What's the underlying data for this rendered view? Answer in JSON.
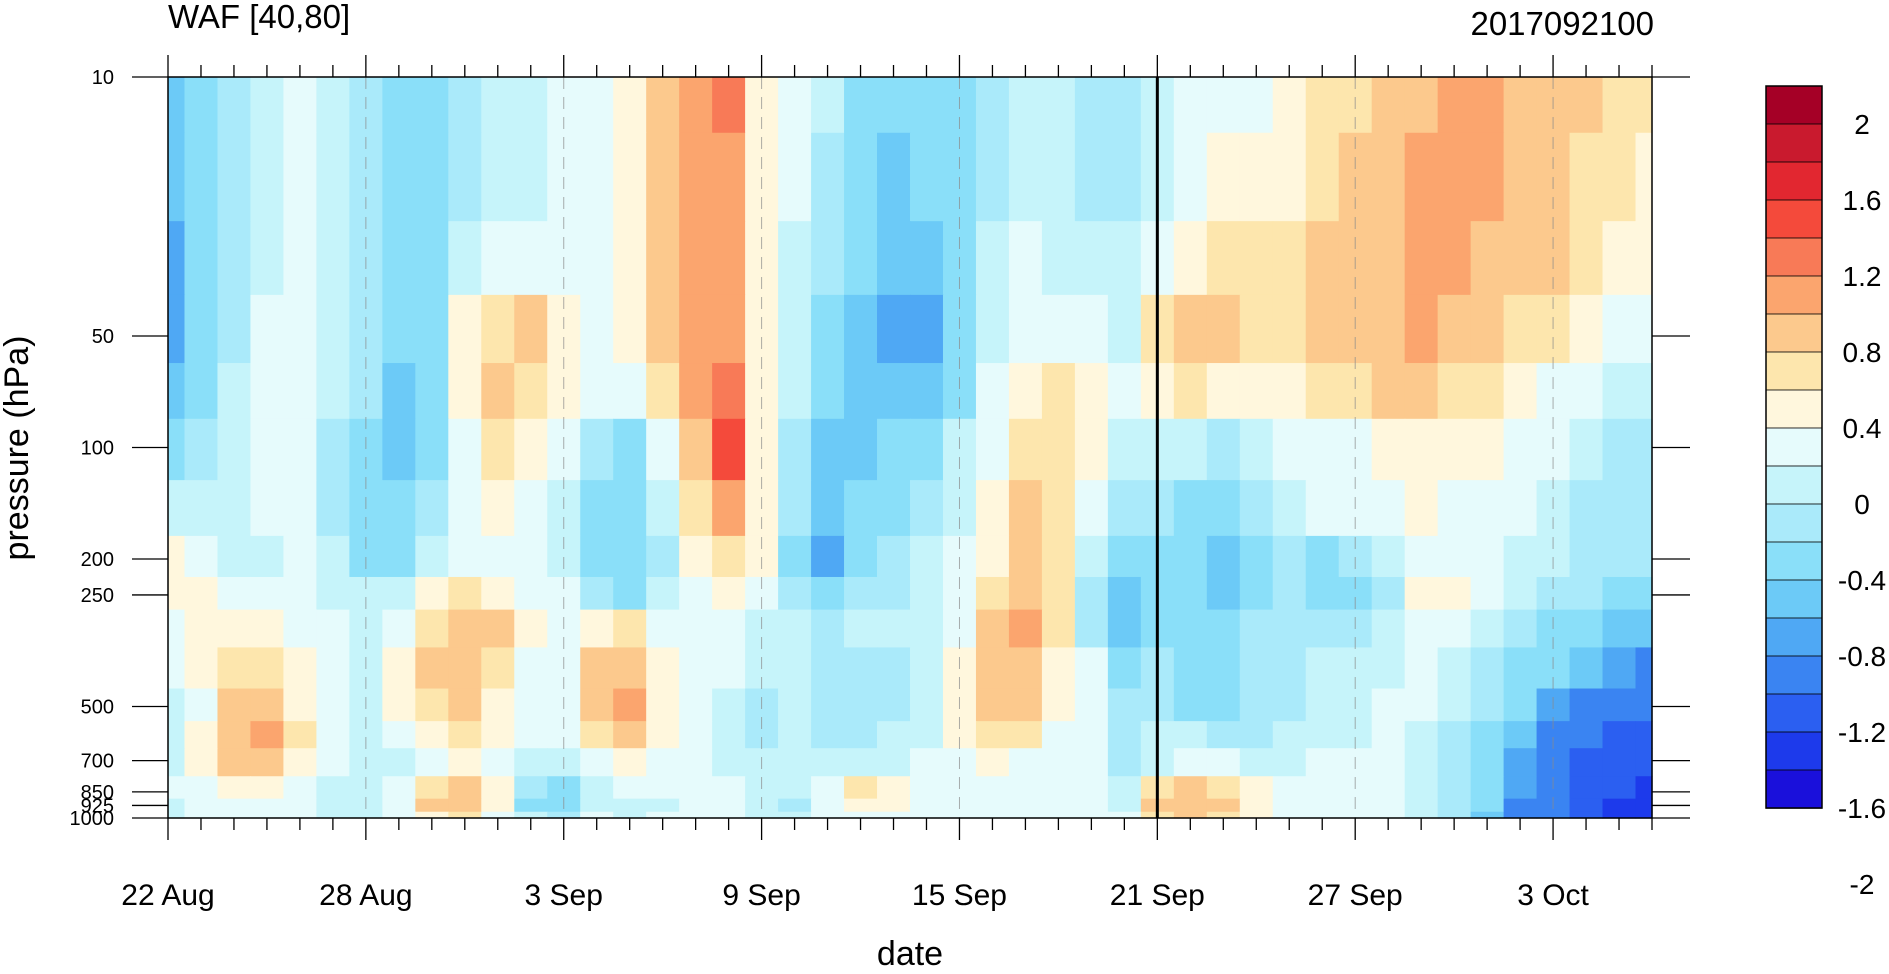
{
  "chart_data": {
    "type": "heatmap",
    "title": "WAF [40,80]",
    "subtitle": "2017092100",
    "xlabel": "date",
    "ylabel": "pressure (hPa)",
    "x_ticks": [
      "22 Aug",
      "28 Aug",
      "3 Sep",
      "9 Sep",
      "15 Sep",
      "21 Sep",
      "27 Sep",
      "3 Oct"
    ],
    "y_ticks": [
      "10",
      "50",
      "100",
      "200",
      "250",
      "500",
      "700",
      "850",
      "925",
      "1000"
    ],
    "y_scale": "log",
    "ylim": [
      1000,
      10
    ],
    "marker_date": "21 Sep",
    "colorbar": {
      "labels": [
        "2",
        "1.6",
        "1.2",
        "0.8",
        "0.4",
        "0",
        "-0.4",
        "-0.8",
        "-1.2",
        "-1.6",
        "-2"
      ],
      "colors": [
        "#a50026",
        "#c91a2e",
        "#e22730",
        "#f44a3b",
        "#f87a57",
        "#fba56e",
        "#fcc98d",
        "#fde6ad",
        "#fff7dd",
        "#e6fbfc",
        "#c6f4fa",
        "#aaeafa",
        "#8adff9",
        "#6ccaf7",
        "#4fa8f4",
        "#3a84f2",
        "#2b5ff1",
        "#1d3aeb",
        "#1a10db"
      ]
    },
    "levels": [
      10,
      20,
      30,
      50,
      70,
      100,
      150,
      200,
      250,
      300,
      400,
      500,
      600,
      700,
      850,
      925,
      1000
    ],
    "dates": [
      "22 Aug",
      "23 Aug",
      "24 Aug",
      "25 Aug",
      "26 Aug",
      "27 Aug",
      "28 Aug",
      "29 Aug",
      "30 Aug",
      "31 Aug",
      "1 Sep",
      "2 Sep",
      "3 Sep",
      "4 Sep",
      "5 Sep",
      "6 Sep",
      "7 Sep",
      "8 Sep",
      "9 Sep",
      "10 Sep",
      "11 Sep",
      "12 Sep",
      "13 Sep",
      "14 Sep",
      "15 Sep",
      "16 Sep",
      "17 Sep",
      "18 Sep",
      "19 Sep",
      "20 Sep",
      "21 Sep",
      "22 Sep",
      "23 Sep",
      "24 Sep",
      "25 Sep",
      "26 Sep",
      "27 Sep",
      "28 Sep",
      "29 Sep",
      "30 Sep",
      "1 Oct",
      "2 Oct",
      "3 Oct",
      "4 Oct",
      "5 Oct",
      "6 Oct"
    ],
    "z": [
      [
        -0.9,
        -0.6,
        -0.4,
        -0.3,
        -0.1,
        -0.2,
        -0.5,
        -0.7,
        -0.6,
        -0.4,
        -0.3,
        -0.2,
        -0.1,
        0.0,
        0.3,
        0.7,
        0.9,
        1.1,
        0.3,
        0.0,
        -0.3,
        -0.6,
        -0.8,
        -0.7,
        -0.6,
        -0.4,
        -0.2,
        -0.3,
        -0.4,
        -0.5,
        -0.2,
        0.0,
        0.1,
        0.0,
        0.2,
        0.4,
        0.5,
        0.6,
        0.8,
        0.9,
        0.9,
        0.8,
        0.8,
        0.6,
        0.5,
        0.4
      ],
      [
        -1.0,
        -0.7,
        -0.4,
        -0.2,
        0.0,
        -0.2,
        -0.5,
        -0.8,
        -0.7,
        -0.4,
        -0.2,
        -0.2,
        -0.1,
        0.0,
        0.3,
        0.7,
        0.9,
        1.0,
        0.3,
        -0.1,
        -0.4,
        -0.7,
        -0.9,
        -0.8,
        -0.6,
        -0.4,
        -0.2,
        -0.3,
        -0.4,
        -0.4,
        -0.2,
        0.1,
        0.2,
        0.2,
        0.3,
        0.5,
        0.6,
        0.7,
        0.9,
        0.9,
        0.9,
        0.8,
        0.7,
        0.5,
        0.4,
        0.3
      ],
      [
        -1.1,
        -0.8,
        -0.4,
        -0.2,
        0.0,
        -0.2,
        -0.4,
        -0.7,
        -0.6,
        -0.3,
        0.0,
        0.0,
        0.0,
        0.0,
        0.3,
        0.7,
        0.9,
        0.9,
        0.3,
        -0.2,
        -0.5,
        -0.8,
        -1.0,
        -0.9,
        -0.6,
        -0.3,
        -0.1,
        -0.2,
        -0.3,
        -0.3,
        0.1,
        0.3,
        0.4,
        0.4,
        0.5,
        0.6,
        0.7,
        0.8,
        0.9,
        0.9,
        0.8,
        0.7,
        0.6,
        0.4,
        0.3,
        0.2
      ],
      [
        -1.2,
        -0.8,
        -0.4,
        -0.1,
        0.0,
        -0.2,
        -0.4,
        -0.8,
        -0.7,
        0.2,
        0.5,
        0.6,
        0.2,
        0.0,
        0.2,
        0.6,
        0.9,
        0.9,
        0.3,
        -0.3,
        -0.6,
        -0.9,
        -1.1,
        -1.2,
        -0.8,
        -0.3,
        0.0,
        0.1,
        0.0,
        -0.2,
        0.4,
        0.6,
        0.6,
        0.5,
        0.5,
        0.6,
        0.7,
        0.8,
        0.9,
        0.8,
        0.7,
        0.5,
        0.4,
        0.2,
        0.0,
        -0.1
      ],
      [
        -0.9,
        -0.6,
        -0.3,
        -0.1,
        0.0,
        -0.3,
        -0.5,
        -0.9,
        -0.6,
        0.2,
        0.6,
        0.5,
        0.2,
        -0.1,
        0.1,
        0.5,
        0.9,
        1.2,
        0.3,
        -0.3,
        -0.7,
        -0.9,
        -1.0,
        -0.9,
        -0.6,
        0.0,
        0.3,
        0.4,
        0.2,
        -0.1,
        0.3,
        0.4,
        0.3,
        0.2,
        0.3,
        0.4,
        0.5,
        0.6,
        0.6,
        0.5,
        0.4,
        0.2,
        0.0,
        -0.1,
        -0.2,
        -0.3
      ],
      [
        -0.6,
        -0.4,
        -0.2,
        -0.1,
        0.0,
        -0.4,
        -0.6,
        -1.0,
        -0.6,
        0.1,
        0.4,
        0.3,
        0.0,
        -0.4,
        -0.6,
        0.0,
        0.8,
        1.3,
        0.3,
        -0.4,
        -0.9,
        -1.0,
        -0.8,
        -0.6,
        -0.3,
        0.1,
        0.5,
        0.4,
        0.2,
        -0.2,
        -0.2,
        -0.3,
        -0.4,
        -0.3,
        -0.1,
        0.0,
        0.1,
        0.2,
        0.3,
        0.3,
        0.2,
        0.0,
        -0.1,
        -0.3,
        -0.4,
        -0.4
      ],
      [
        -0.3,
        -0.3,
        -0.2,
        -0.1,
        -0.1,
        -0.4,
        -0.6,
        -0.6,
        -0.4,
        0.0,
        0.2,
        0.1,
        -0.3,
        -0.6,
        -0.7,
        -0.2,
        0.5,
        0.9,
        0.3,
        -0.5,
        -0.9,
        -0.8,
        -0.6,
        -0.4,
        -0.2,
        0.2,
        0.7,
        0.5,
        0.0,
        -0.5,
        -0.5,
        -0.6,
        -0.7,
        -0.5,
        -0.3,
        -0.1,
        0.0,
        0.1,
        0.2,
        0.1,
        0.0,
        -0.1,
        -0.3,
        -0.4,
        -0.5,
        -0.5
      ],
      [
        0.2,
        -0.1,
        -0.2,
        -0.2,
        -0.1,
        -0.3,
        -0.7,
        -0.6,
        -0.3,
        0.0,
        0.1,
        0.0,
        -0.2,
        -0.6,
        -0.8,
        -0.4,
        0.3,
        0.5,
        0.2,
        -0.7,
        -1.1,
        -0.7,
        -0.5,
        -0.3,
        -0.1,
        0.3,
        0.7,
        0.5,
        -0.3,
        -0.6,
        -0.8,
        -0.7,
        -0.9,
        -0.6,
        -0.5,
        -0.7,
        -0.5,
        -0.3,
        -0.1,
        0.0,
        -0.1,
        -0.2,
        -0.3,
        -0.4,
        -0.5,
        -0.5
      ],
      [
        0.3,
        0.2,
        0.0,
        -0.1,
        -0.1,
        -0.2,
        -0.3,
        -0.2,
        0.2,
        0.5,
        0.3,
        0.1,
        0.0,
        -0.4,
        -0.6,
        -0.3,
        0.0,
        0.2,
        -0.1,
        -0.5,
        -0.6,
        -0.5,
        -0.4,
        -0.3,
        -0.1,
        0.4,
        0.8,
        0.5,
        -0.4,
        -1.0,
        -0.7,
        -0.8,
        -0.9,
        -0.6,
        -0.5,
        -0.6,
        -0.6,
        -0.4,
        0.3,
        0.2,
        -0.1,
        -0.3,
        -0.4,
        -0.5,
        -0.6,
        -0.6
      ],
      [
        0.1,
        0.2,
        0.3,
        0.2,
        0.1,
        -0.1,
        -0.3,
        0.1,
        0.5,
        0.8,
        0.6,
        0.2,
        0.0,
        0.2,
        0.4,
        0.0,
        -0.1,
        0.0,
        -0.2,
        -0.3,
        -0.4,
        -0.3,
        -0.3,
        -0.2,
        0.1,
        0.6,
        0.9,
        0.4,
        -0.4,
        -0.9,
        -0.6,
        -0.6,
        -0.6,
        -0.5,
        -0.5,
        -0.5,
        -0.5,
        -0.3,
        -0.1,
        -0.1,
        -0.3,
        -0.5,
        -0.6,
        -0.8,
        -0.9,
        -1.0
      ],
      [
        0.0,
        0.2,
        0.4,
        0.4,
        0.2,
        -0.1,
        -0.2,
        0.2,
        0.6,
        0.8,
        0.5,
        0.1,
        0.1,
        0.6,
        0.7,
        0.2,
        -0.1,
        -0.1,
        -0.3,
        -0.3,
        -0.4,
        -0.5,
        -0.4,
        -0.2,
        0.3,
        0.7,
        0.8,
        0.3,
        -0.1,
        -0.7,
        -0.5,
        -0.6,
        -0.7,
        -0.5,
        -0.4,
        -0.3,
        -0.3,
        -0.2,
        -0.1,
        -0.2,
        -0.4,
        -0.6,
        -0.8,
        -1.0,
        -1.2,
        -1.3
      ],
      [
        -0.2,
        0.1,
        0.6,
        0.8,
        0.3,
        -0.1,
        -0.2,
        0.2,
        0.5,
        0.6,
        0.3,
        0.0,
        0.1,
        0.7,
        0.9,
        0.3,
        -0.1,
        -0.2,
        -0.4,
        -0.3,
        -0.5,
        -0.5,
        -0.4,
        -0.2,
        0.3,
        0.7,
        0.6,
        0.2,
        0.0,
        -0.5,
        -0.5,
        -0.6,
        -0.6,
        -0.5,
        -0.4,
        -0.2,
        -0.2,
        -0.1,
        -0.1,
        -0.3,
        -0.5,
        -0.8,
        -1.1,
        -1.3,
        -1.4,
        -1.5
      ],
      [
        -0.3,
        0.2,
        0.8,
        1.0,
        0.4,
        -0.1,
        -0.3,
        0.0,
        0.3,
        0.4,
        0.2,
        -0.1,
        0.0,
        0.4,
        0.6,
        0.2,
        -0.1,
        -0.3,
        -0.4,
        -0.3,
        -0.4,
        -0.4,
        -0.3,
        -0.2,
        0.2,
        0.5,
        0.4,
        0.0,
        0.1,
        -0.5,
        -0.3,
        -0.3,
        -0.4,
        -0.4,
        -0.3,
        -0.2,
        -0.2,
        -0.1,
        -0.2,
        -0.4,
        -0.6,
        -1.0,
        -1.4,
        -1.5,
        -1.6,
        -1.6
      ],
      [
        -0.2,
        0.2,
        0.6,
        0.7,
        0.3,
        -0.1,
        -0.3,
        -0.2,
        0.1,
        0.2,
        0.0,
        -0.3,
        -0.2,
        0.1,
        0.2,
        0.0,
        -0.1,
        -0.2,
        -0.3,
        -0.3,
        -0.3,
        -0.2,
        -0.2,
        -0.1,
        0.0,
        0.2,
        0.1,
        -0.1,
        0.0,
        -0.4,
        -0.2,
        0.0,
        -0.1,
        -0.2,
        -0.2,
        -0.1,
        -0.1,
        -0.1,
        -0.2,
        -0.4,
        -0.7,
        -1.1,
        -1.5,
        -1.6,
        -1.7,
        -1.7
      ],
      [
        -0.1,
        0.1,
        0.2,
        0.3,
        0.1,
        -0.2,
        -0.3,
        0.0,
        0.4,
        0.6,
        0.3,
        -0.5,
        -0.6,
        -0.2,
        0.0,
        0.1,
        0.0,
        -0.1,
        -0.2,
        -0.3,
        0.1,
        0.4,
        0.3,
        0.0,
        -0.1,
        -0.1,
        0.0,
        0.0,
        -0.1,
        -0.3,
        0.5,
        0.6,
        0.5,
        0.3,
        0.1,
        0.0,
        0.0,
        -0.1,
        -0.2,
        -0.4,
        -0.7,
        -1.2,
        -1.5,
        -1.6,
        -1.7,
        -1.8
      ],
      [
        -0.2,
        0.0,
        0.0,
        0.1,
        -0.1,
        -0.3,
        -0.2,
        0.0,
        0.6,
        0.7,
        0.3,
        -0.6,
        -0.8,
        -0.3,
        -0.3,
        -0.2,
        -0.1,
        -0.1,
        -0.3,
        -0.4,
        0.0,
        0.3,
        0.2,
        0.0,
        -0.1,
        0.1,
        0.1,
        0.0,
        -0.1,
        -0.2,
        0.7,
        0.8,
        0.6,
        0.3,
        0.1,
        0.0,
        0.0,
        -0.1,
        -0.2,
        -0.5,
        -0.8,
        -1.3,
        -1.5,
        -1.7,
        -1.8,
        -1.9
      ],
      [
        -0.2,
        -0.1,
        -0.1,
        0.0,
        -0.1,
        -0.2,
        -0.2,
        0.0,
        0.3,
        0.4,
        0.1,
        -0.3,
        -0.4,
        -0.1,
        -0.2,
        -0.1,
        0.0,
        0.0,
        -0.2,
        -0.2,
        0.0,
        0.1,
        0.1,
        0.0,
        0.0,
        0.0,
        0.0,
        0.0,
        0.0,
        0.0,
        0.5,
        0.6,
        0.4,
        0.2,
        0.1,
        0.0,
        0.0,
        -0.1,
        -0.2,
        -0.5,
        -0.9,
        -1.3,
        -1.5,
        -1.7,
        -1.8,
        -1.8
      ]
    ]
  }
}
